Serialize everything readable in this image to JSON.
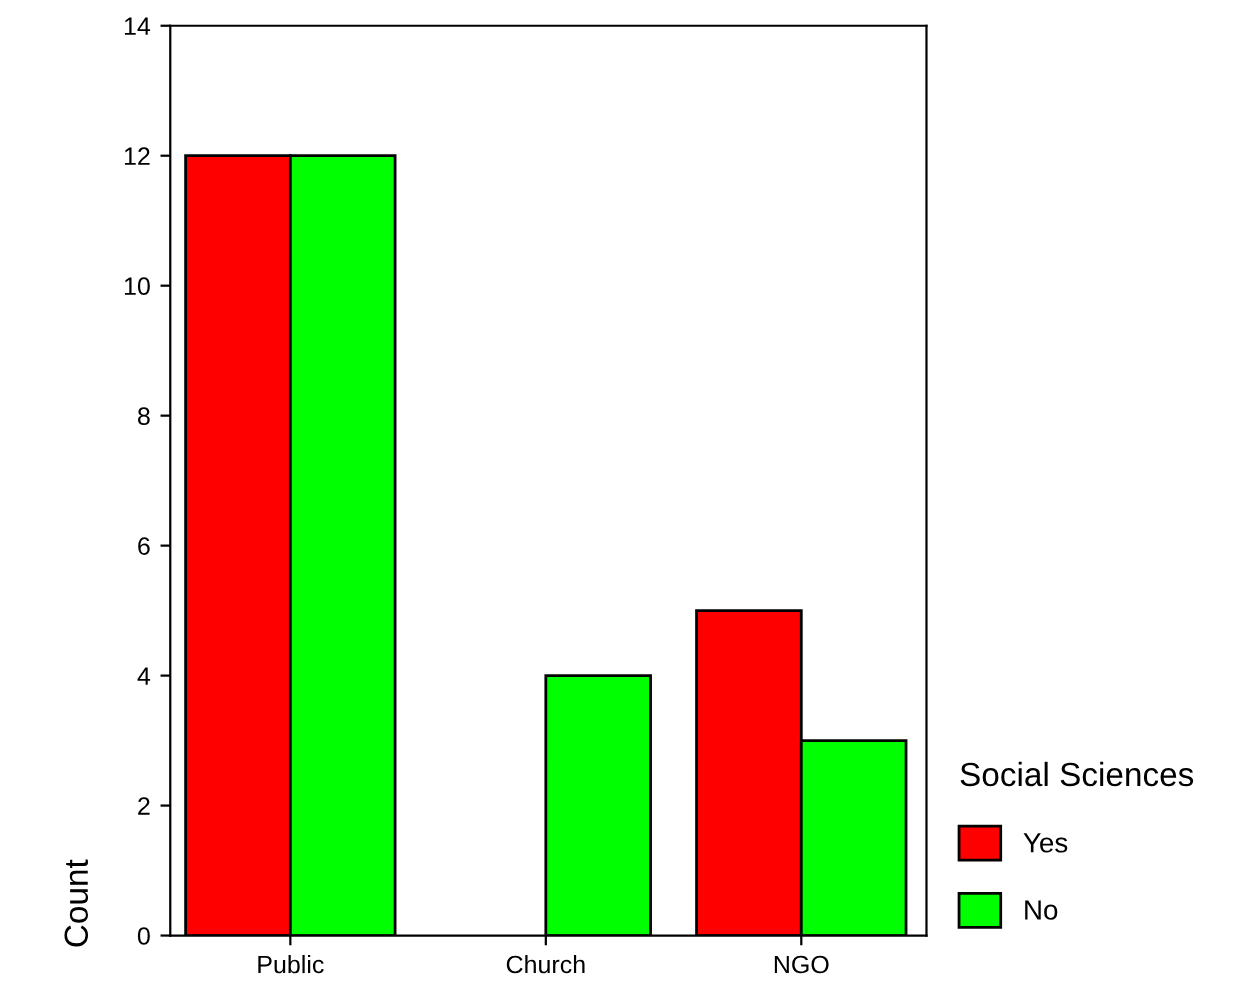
{
  "chart_data": {
    "type": "bar",
    "ylabel": "Count",
    "legend_title": "Social Sciences",
    "categories": [
      "Public",
      "Church",
      "NGO"
    ],
    "series": [
      {
        "name": "Yes",
        "color": "#ff0000",
        "values": [
          12,
          null,
          5
        ]
      },
      {
        "name": "No",
        "color": "#00ff00",
        "values": [
          12,
          4,
          3
        ]
      }
    ],
    "ylim": [
      0,
      14
    ],
    "yticks": [
      0,
      2,
      4,
      6,
      8,
      10,
      12,
      14
    ],
    "grid": false,
    "legend": "right"
  }
}
